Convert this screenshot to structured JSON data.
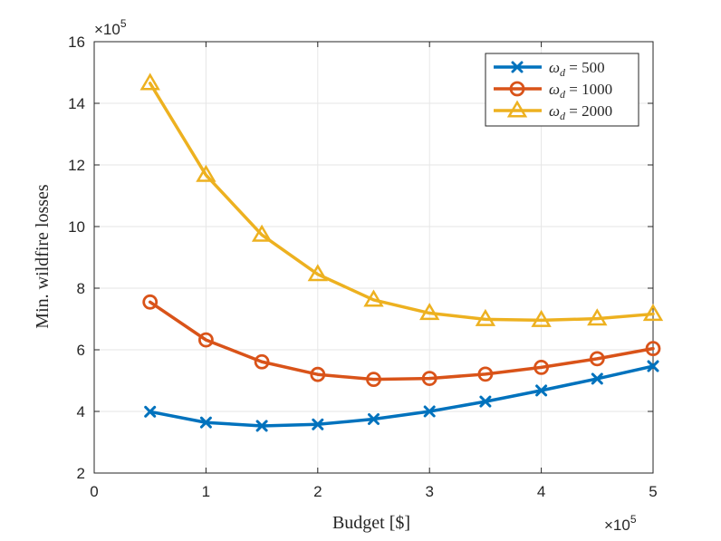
{
  "chart_data": {
    "type": "line",
    "title": "",
    "xlabel": "Budget [$]",
    "ylabel": "Min. wildfire losses",
    "xlim": [
      0,
      5
    ],
    "ylim": [
      2,
      16
    ],
    "x_ticks": [
      "0",
      "1",
      "2",
      "3",
      "4",
      "5"
    ],
    "y_ticks": [
      "2",
      "4",
      "6",
      "8",
      "10",
      "12",
      "14",
      "16"
    ],
    "x_multiplier": "×10",
    "x_multiplier_exp": "5",
    "y_multiplier": "×10",
    "y_multiplier_exp": "5",
    "grid": true,
    "legend_position": "top-right",
    "x": [
      0.5,
      1.0,
      1.5,
      2.0,
      2.5,
      3.0,
      3.5,
      4.0,
      4.5,
      5.0
    ],
    "series": [
      {
        "name": "ω_d = 500",
        "legend_symbol": "ω",
        "legend_sub": "d",
        "legend_value": " = 500",
        "color": "#0072BD",
        "marker": "x",
        "values": [
          3.99,
          3.64,
          3.53,
          3.58,
          3.75,
          4.0,
          4.32,
          4.68,
          5.06,
          5.47
        ]
      },
      {
        "name": "ω_d = 1000",
        "legend_symbol": "ω",
        "legend_sub": "d",
        "legend_value": " = 1000",
        "color": "#D95319",
        "marker": "o",
        "values": [
          7.55,
          6.32,
          5.61,
          5.2,
          5.04,
          5.07,
          5.21,
          5.43,
          5.71,
          6.04
        ]
      },
      {
        "name": "ω_d = 2000",
        "legend_symbol": "ω",
        "legend_sub": "d",
        "legend_value": " = 2000",
        "color": "#EDB120",
        "marker": "^",
        "values": [
          14.65,
          11.67,
          9.73,
          8.45,
          7.62,
          7.19,
          6.99,
          6.96,
          7.01,
          7.16
        ]
      }
    ]
  }
}
